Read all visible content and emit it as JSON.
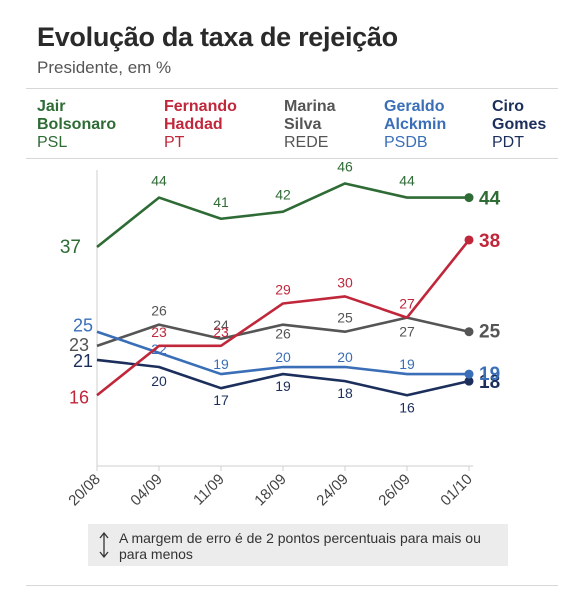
{
  "title": "Evolução da taxa de rejeição",
  "subtitle": "Presidente, em %",
  "note": "A margem de erro é de 2 pontos percentuais para mais ou para menos",
  "chart_data": {
    "type": "line",
    "title": "Evolução da taxa de rejeição",
    "subtitle": "Presidente, em %",
    "x": [
      "20/08",
      "04/09",
      "11/09",
      "18/09",
      "24/09",
      "26/09",
      "01/10"
    ],
    "ylim": [
      0,
      50
    ],
    "grid": false,
    "legend_position": "top",
    "series": [
      {
        "name": "Jair Bolsonaro",
        "party": "PSL",
        "color": "#2e6b35",
        "values": [
          37,
          44,
          41,
          42,
          46,
          44,
          44
        ]
      },
      {
        "name": "Fernando Haddad",
        "party": "PT",
        "color": "#c0273a",
        "values": [
          16,
          23,
          23,
          29,
          30,
          27,
          38
        ]
      },
      {
        "name": "Marina Silva",
        "party": "REDE",
        "color": "#555555",
        "values": [
          23,
          26,
          24,
          26,
          25,
          27,
          25
        ]
      },
      {
        "name": "Geraldo Alckmin",
        "party": "PSDB",
        "color": "#3a6fb8",
        "values": [
          25,
          22,
          19,
          20,
          20,
          19,
          19
        ]
      },
      {
        "name": "Ciro Gomes",
        "party": "PDT",
        "color": "#1c2f5c",
        "values": [
          21,
          20,
          17,
          19,
          18,
          16,
          18
        ]
      }
    ]
  },
  "legend": [
    {
      "name_line1": "Jair",
      "name_line2": "Bolsonaro",
      "party": "PSL",
      "color": "#2e6b35"
    },
    {
      "name_line1": "Fernando",
      "name_line2": "Haddad",
      "party": "PT",
      "color": "#c0273a"
    },
    {
      "name_line1": "Marina",
      "name_line2": "Silva",
      "party": "REDE",
      "color": "#555555"
    },
    {
      "name_line1": "Geraldo",
      "name_line2": "Alckmin",
      "party": "PSDB",
      "color": "#3a6fb8"
    },
    {
      "name_line1": "Ciro",
      "name_line2": "Gomes",
      "party": "PDT",
      "color": "#1c2f5c"
    }
  ]
}
